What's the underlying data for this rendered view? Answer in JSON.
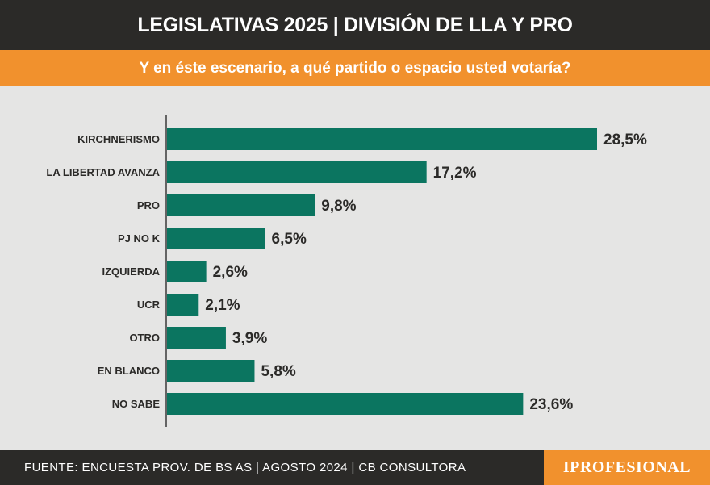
{
  "header": {
    "title": "LEGISLATIVAS 2025 | DIVISIÓN DE LLA Y PRO",
    "subtitle": "Y en éste escenario, a qué partido o espacio usted votaría?"
  },
  "footer": {
    "source": "FUENTE: ENCUESTA PROV. DE BS AS | AGOSTO 2024 | CB CONSULTORA",
    "brand": "IPROFESIONAL"
  },
  "colors": {
    "bar": "#0b7560",
    "header_bg": "#2b2a28",
    "accent": "#f1912d",
    "background": "#e5e5e4"
  },
  "chart_data": {
    "type": "bar",
    "orientation": "horizontal",
    "categories": [
      "KIRCHNERISMO",
      "LA LIBERTAD AVANZA",
      "PRO",
      "PJ NO K",
      "IZQUIERDA",
      "UCR",
      "OTRO",
      "EN BLANCO",
      "NO SABE"
    ],
    "values": [
      28.5,
      17.2,
      9.8,
      6.5,
      2.6,
      2.1,
      3.9,
      5.8,
      23.6
    ],
    "value_labels": [
      "28,5%",
      "17,2%",
      "9,8%",
      "6,5%",
      "2,6%",
      "2,1%",
      "3,9%",
      "5,8%",
      "23,6%"
    ],
    "title": "Y en éste escenario, a qué partido o espacio usted votaría?",
    "xlim": [
      0,
      30
    ],
    "grid": false,
    "legend": "none"
  }
}
